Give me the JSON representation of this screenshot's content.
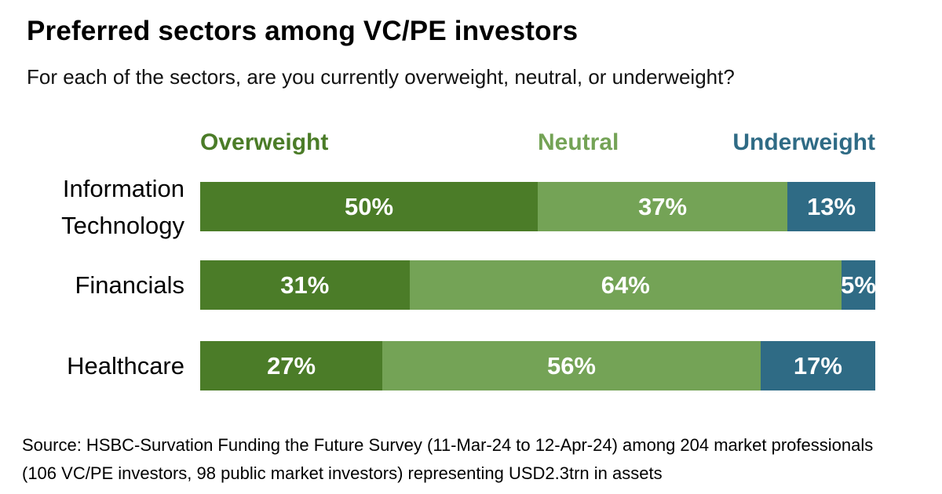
{
  "header": {
    "title": "Preferred sectors among VC/PE investors",
    "subtitle": "For each of the sectors, are you currently overweight, neutral, or underweight?"
  },
  "chart_data": {
    "type": "bar",
    "orientation": "horizontal",
    "stacked": true,
    "unit": "%",
    "title": "Preferred sectors among VC/PE investors",
    "categories": [
      "Information Technology",
      "Financials",
      "Healthcare"
    ],
    "series": [
      {
        "name": "Overweight",
        "color": "#4b7c28",
        "values": [
          50,
          31,
          27
        ],
        "labels": [
          "50%",
          "31%",
          "27%"
        ]
      },
      {
        "name": "Neutral",
        "color": "#74a356",
        "values": [
          37,
          64,
          56
        ],
        "labels": [
          "37%",
          "64%",
          "56%"
        ]
      },
      {
        "name": "Underweight",
        "color": "#2f6b85",
        "values": [
          13,
          5,
          17
        ],
        "labels": [
          "13%",
          "5%",
          "17%"
        ]
      }
    ],
    "xlim": [
      0,
      100
    ],
    "grid": false,
    "legend_position": "top",
    "value_labels": "inside-white"
  },
  "source": {
    "line1": "Source: HSBC-Survation Funding the Future Survey (11-Mar-24 to 12-Apr-24) among 204 market professionals",
    "line2": "(106 VC/PE investors, 98 public market investors) representing USD2.3trn in assets"
  }
}
